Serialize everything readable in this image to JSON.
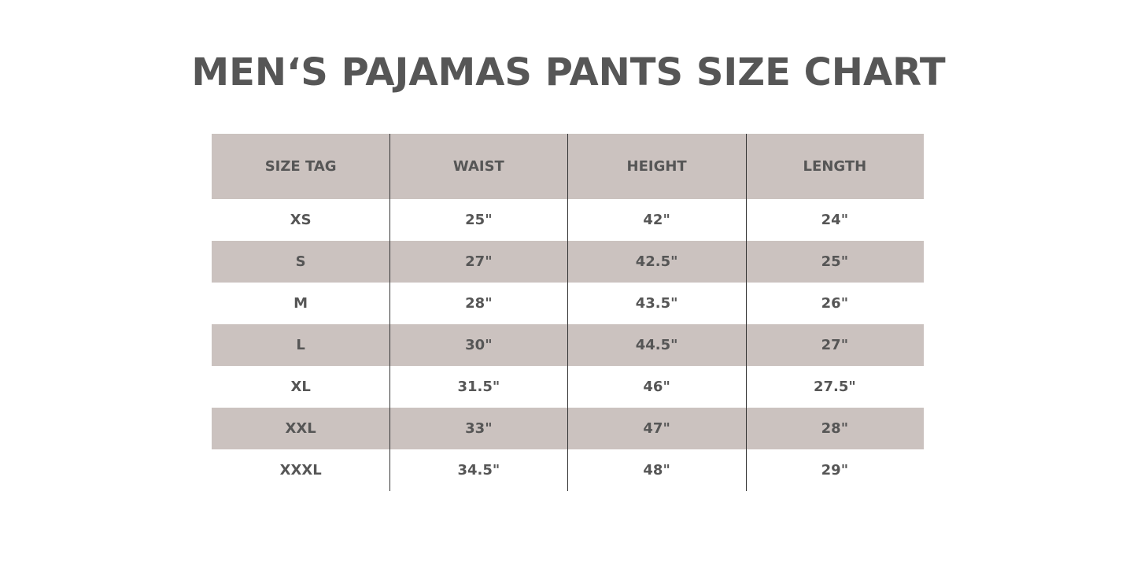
{
  "title": "MEN‘S PAJAMAS PANTS SIZE CHART",
  "colors": {
    "header_bg": "#cbc2bf",
    "text": "#565656"
  },
  "table": {
    "headers": [
      "SIZE TAG",
      "WAIST",
      "HEIGHT",
      "LENGTH"
    ],
    "rows": [
      [
        "XS",
        "25\"",
        "42\"",
        "24\""
      ],
      [
        "S",
        "27\"",
        "42.5\"",
        "25\""
      ],
      [
        "M",
        "28\"",
        "43.5\"",
        "26\""
      ],
      [
        "L",
        "30\"",
        "44.5\"",
        "27\""
      ],
      [
        "XL",
        "31.5\"",
        "46\"",
        "27.5\""
      ],
      [
        "XXL",
        "33\"",
        "47\"",
        "28\""
      ],
      [
        "XXXL",
        "34.5\"",
        "48\"",
        "29\""
      ]
    ]
  }
}
